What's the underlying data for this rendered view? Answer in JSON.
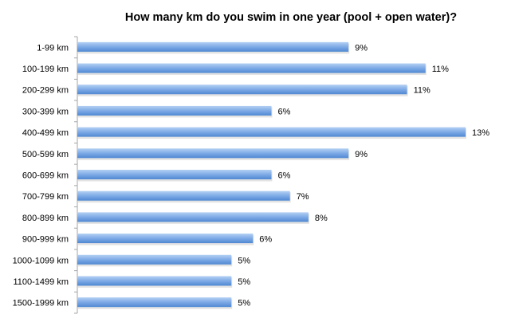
{
  "chart_data": {
    "type": "bar",
    "orientation": "horizontal",
    "title": "How many km do you swim in one year (pool + open water)?",
    "xlabel": "",
    "ylabel": "",
    "categories": [
      "1-99 km",
      "100-199 km",
      "200-299 km",
      "300-399 km",
      "400-499 km",
      "500-599 km",
      "600-699 km",
      "700-799 km",
      "800-899 km",
      "900-999 km",
      "1000-1099 km",
      "1100-1499 km",
      "1500-1999 km"
    ],
    "values": [
      8.8,
      11.3,
      10.7,
      6.3,
      12.6,
      8.8,
      6.3,
      6.9,
      7.5,
      5.7,
      5.0,
      5.0,
      5.0
    ],
    "data_labels": [
      "9%",
      "11%",
      "11%",
      "6%",
      "13%",
      "9%",
      "6%",
      "7%",
      "8%",
      "6%",
      "5%",
      "5%",
      "5%"
    ],
    "unit": "%",
    "xlim": [
      0,
      12.6
    ],
    "grid": false,
    "legend": "none",
    "colors": {
      "bar_top": "#b3d0f3",
      "bar_bottom": "#4f88d2",
      "axis": "#a6a6a6"
    }
  }
}
